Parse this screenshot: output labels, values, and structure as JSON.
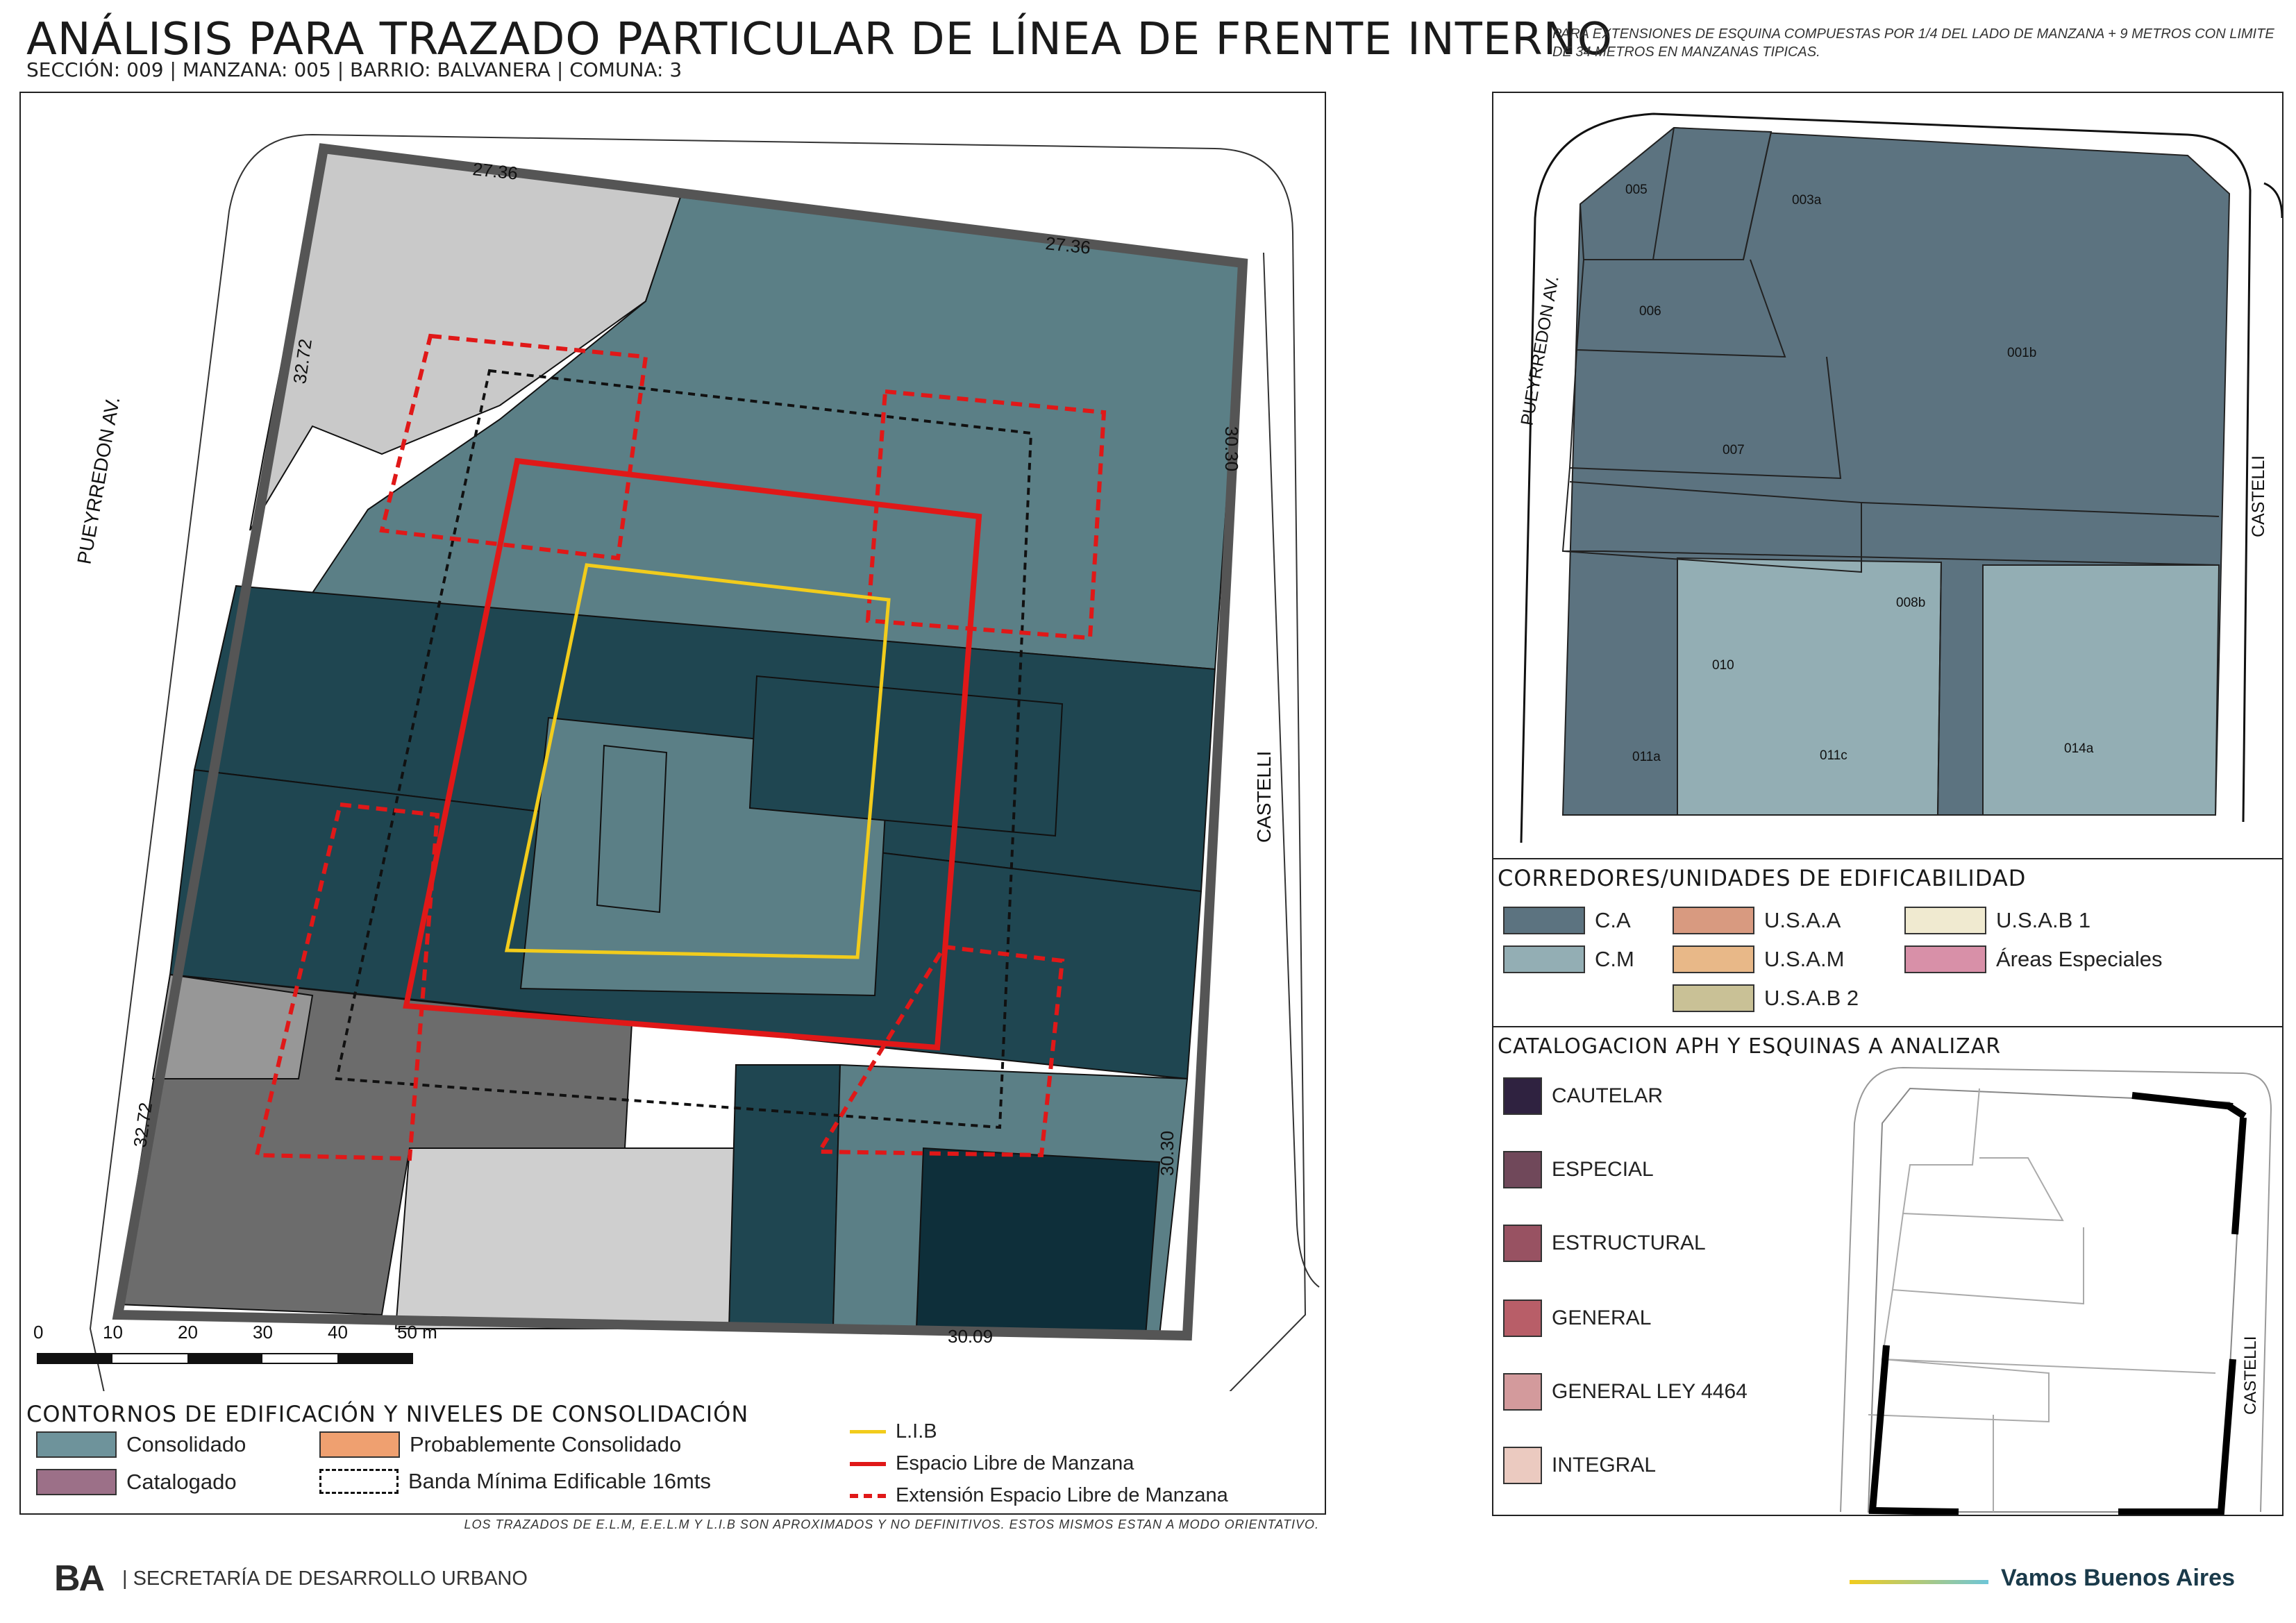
{
  "header": {
    "title": "ANÁLISIS PARA TRAZADO PARTICULAR DE LÍNEA DE FRENTE INTERNO",
    "subtitle": "SECCIÓN: 009 |  MANZANA: 005 | BARRIO: BALVANERA | COMUNA: 3",
    "note": "PARA EXTENSIONES DE ESQUINA COMPUESTAS POR 1/4 DEL LADO DE MANZANA + 9 METROS CON LIMITE DE 34 METROS EN MANZANAS TIPICAS."
  },
  "map": {
    "streets": {
      "west": "PUEYRREDON AV.",
      "east": "CASTELLI"
    },
    "dimensions": {
      "north_left": "27.36",
      "north_right": "27.36",
      "west_upper": "32.72",
      "west_lower": "32.72",
      "east_upper": "30.30",
      "east_lower": "30.30",
      "south": "30.09"
    },
    "scale": {
      "ticks": [
        "0",
        "10",
        "20",
        "30",
        "40",
        "50 m"
      ]
    }
  },
  "legend_main": {
    "title": "CONTORNOS DE EDIFICACIÓN Y NIVELES DE CONSOLIDACIÓN",
    "items": [
      {
        "label": "Consolidado",
        "color": "#6e939b"
      },
      {
        "label": "Probablemente Consolidado",
        "color": "#efa070"
      },
      {
        "label": "Catalogado",
        "color": "#9c7088"
      },
      {
        "label": "Banda Mínima Edificable 16mts",
        "color": "#ffffff"
      }
    ],
    "lines": [
      {
        "label": "L.I.B",
        "color": "#f2cc1c"
      },
      {
        "label": "Espacio Libre de Manzana",
        "color": "#e01818"
      },
      {
        "label": "Extensión Espacio Libre de Manzana",
        "color": "#e01818"
      }
    ]
  },
  "mini_map": {
    "streets": {
      "west": "PUEYRREDON AV.",
      "east": "CASTELLI"
    },
    "parcels": [
      "005",
      "003a",
      "006",
      "001b",
      "007",
      "008b",
      "010",
      "011a",
      "011c",
      "014a"
    ]
  },
  "legend_corredores": {
    "title": "CORREDORES/UNIDADES DE EDIFICABILIDAD",
    "items": [
      {
        "label": "C.A",
        "color": "#5c7380"
      },
      {
        "label": "U.S.A.A",
        "color": "#d89a80"
      },
      {
        "label": "U.S.A.B 1",
        "color": "#f0ead0"
      },
      {
        "label": "C.M",
        "color": "#93aeb4"
      },
      {
        "label": "U.S.A.M",
        "color": "#e8b888"
      },
      {
        "label": "Áreas Especiales",
        "color": "#d890a8"
      },
      {
        "label": "U.S.A.B 2",
        "color": "#c9c196"
      }
    ]
  },
  "legend_catalogacion": {
    "title": "CATALOGACION APH Y ESQUINAS A ANALIZAR",
    "items": [
      {
        "label": "CAUTELAR",
        "color": "#2f2240"
      },
      {
        "label": "ESPECIAL",
        "color": "#70485a"
      },
      {
        "label": "ESTRUCTURAL",
        "color": "#985262"
      },
      {
        "label": "GENERAL",
        "color": "#b85e68"
      },
      {
        "label": "GENERAL LEY 4464",
        "color": "#d39a9c"
      },
      {
        "label": "INTEGRAL",
        "color": "#ebcac0"
      }
    ],
    "street_east": "CASTELLI"
  },
  "footer": {
    "disclaimer": "LOS TRAZADOS DE E.L.M, E.E.L.M Y L.I.B SON APROXIMADOS Y NO DEFINITIVOS. ESTOS MISMOS ESTAN A MODO ORIENTATIVO.",
    "org": "| SECRETARÍA DE DESARROLLO URBANO",
    "logo": "BA",
    "brand": "Vamos Buenos Aires"
  }
}
